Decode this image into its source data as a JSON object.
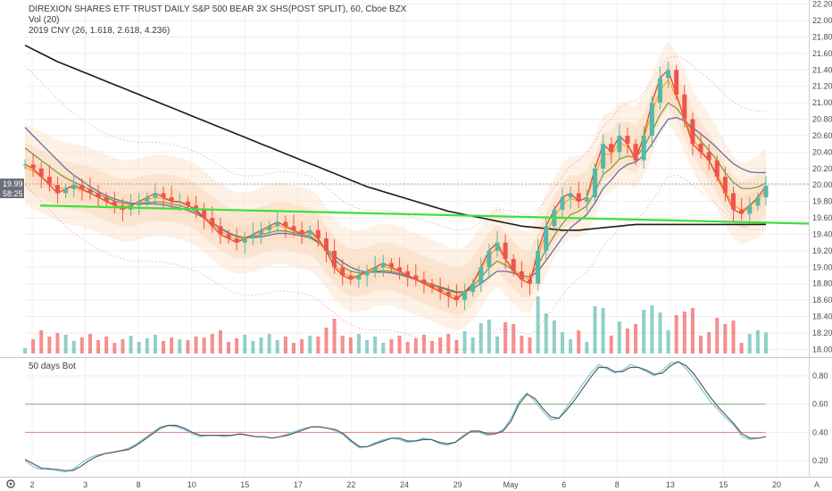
{
  "header": {
    "title": "DIREXION SHARES ETF TRUST DAILY S&P 500 BEAR 3X SHS(POST SPLIT), 60, Cboe BZX",
    "vol_label": "Vol (20)",
    "cny_label": "2019 CNY (26, 1.618, 2.618, 4.236)"
  },
  "oscillator": {
    "label": "50 days Bot"
  },
  "price_tags": {
    "last_price": "19.99",
    "countdown": "58:25"
  },
  "footer": {
    "settings_icon": "gear-icon",
    "auto_label": "A"
  },
  "colors": {
    "up": "#53b9a8",
    "down": "#ef5350",
    "ma_red": "#e0402f",
    "ma_orange": "#f5a623",
    "ma_green": "#7a9a4a",
    "ma_purple": "#6b6aa5",
    "ma_black": "#1a1a1a",
    "trendline": "#3fe03a",
    "band_fill": "#fbd8b6",
    "osc_line": "#5a5a5a",
    "osc_signal": "#7ec8e3"
  },
  "chart_data": [
    {
      "type": "candlestick",
      "panel": "price",
      "y_ticks": [
        "22.20",
        "22.00",
        "21.80",
        "21.60",
        "21.40",
        "21.20",
        "21.00",
        "20.80",
        "20.60",
        "20.40",
        "20.20",
        "20.00",
        "19.80",
        "19.60",
        "19.40",
        "19.20",
        "19.00",
        "18.80",
        "18.60",
        "18.40",
        "18.20",
        "18.00"
      ],
      "ylim": [
        17.95,
        22.25
      ],
      "x_ticks": [
        "2",
        "3",
        "8",
        "10",
        "15",
        "17",
        "22",
        "24",
        "29",
        "May",
        "6",
        "8",
        "13",
        "15",
        "20"
      ],
      "last_value": 19.99,
      "trendline": {
        "from": 19.75,
        "to": 19.53
      },
      "close_path": [
        20.25,
        20.2,
        20.1,
        20.0,
        19.9,
        19.95,
        20.0,
        19.95,
        19.9,
        19.85,
        19.8,
        19.75,
        19.7,
        19.75,
        19.8,
        19.85,
        19.9,
        19.85,
        19.8,
        19.8,
        19.75,
        19.7,
        19.6,
        19.5,
        19.4,
        19.35,
        19.3,
        19.35,
        19.4,
        19.45,
        19.5,
        19.55,
        19.5,
        19.45,
        19.4,
        19.45,
        19.35,
        19.2,
        19.0,
        18.9,
        18.85,
        18.9,
        18.95,
        19.0,
        19.05,
        19.0,
        18.95,
        18.9,
        18.85,
        18.8,
        18.75,
        18.7,
        18.65,
        18.6,
        18.7,
        18.8,
        19.0,
        19.2,
        19.3,
        19.1,
        18.95,
        18.85,
        18.8,
        19.2,
        19.5,
        19.7,
        19.85,
        19.9,
        19.8,
        19.85,
        20.2,
        20.5,
        20.4,
        20.6,
        20.5,
        20.3,
        20.6,
        21.0,
        21.3,
        21.4,
        21.1,
        20.8,
        20.5,
        20.4,
        20.3,
        20.1,
        19.9,
        19.7,
        19.65,
        19.75,
        19.85,
        19.99
      ],
      "ma_fast": [
        20.2,
        20.15,
        20.1,
        20.05,
        20.0,
        19.97,
        19.95,
        19.93,
        19.9,
        19.86,
        19.82,
        19.78,
        19.75,
        19.75,
        19.78,
        19.8,
        19.82,
        19.82,
        19.8,
        19.78,
        19.75,
        19.7,
        19.62,
        19.54,
        19.46,
        19.4,
        19.36,
        19.36,
        19.38,
        19.42,
        19.45,
        19.48,
        19.47,
        19.44,
        19.42,
        19.4,
        19.32,
        19.18,
        19.05,
        18.95,
        18.9,
        18.9,
        18.92,
        18.96,
        18.98,
        18.97,
        18.94,
        18.9,
        18.86,
        18.82,
        18.78,
        18.74,
        18.7,
        18.67,
        18.7,
        18.8,
        18.95,
        19.1,
        19.2,
        19.1,
        19.0,
        18.9,
        18.88,
        19.1,
        19.35,
        19.55,
        19.7,
        19.8,
        19.8,
        19.85,
        20.05,
        20.3,
        20.35,
        20.45,
        20.45,
        20.4,
        20.55,
        20.8,
        21.05,
        21.2,
        21.05,
        20.85,
        20.6,
        20.45,
        20.3,
        20.15,
        19.95,
        19.8,
        19.72,
        19.75,
        19.8,
        19.9
      ],
      "ma_slow": [
        20.7,
        20.6,
        20.5,
        20.4,
        20.3,
        20.2,
        20.12,
        20.05,
        19.98,
        19.92,
        19.87,
        19.83,
        19.8,
        19.78,
        19.77,
        19.77,
        19.77,
        19.76,
        19.74,
        19.72,
        19.69,
        19.65,
        19.6,
        19.54,
        19.48,
        19.42,
        19.38,
        19.36,
        19.36,
        19.37,
        19.39,
        19.41,
        19.41,
        19.4,
        19.38,
        19.36,
        19.3,
        19.22,
        19.14,
        19.06,
        19.0,
        18.96,
        18.94,
        18.94,
        18.94,
        18.93,
        18.91,
        18.88,
        18.85,
        18.82,
        18.79,
        18.76,
        18.73,
        18.7,
        18.7,
        18.74,
        18.8,
        18.88,
        18.95,
        18.95,
        18.93,
        18.9,
        18.88,
        18.95,
        19.08,
        19.22,
        19.36,
        19.48,
        19.56,
        19.64,
        19.78,
        19.96,
        20.06,
        20.18,
        20.25,
        20.28,
        20.36,
        20.5,
        20.66,
        20.8,
        20.82,
        20.78,
        20.7,
        20.62,
        20.54,
        20.45,
        20.35,
        20.26,
        20.2,
        20.16,
        20.15,
        20.15
      ],
      "ma_long": [
        21.7,
        21.65,
        21.6,
        21.55,
        21.5,
        21.46,
        21.42,
        21.38,
        21.34,
        21.3,
        21.26,
        21.22,
        21.18,
        21.14,
        21.1,
        21.06,
        21.02,
        20.98,
        20.94,
        20.9,
        20.86,
        20.82,
        20.78,
        20.74,
        20.7,
        20.66,
        20.62,
        20.58,
        20.54,
        20.5,
        20.46,
        20.42,
        20.38,
        20.34,
        20.3,
        20.26,
        20.22,
        20.18,
        20.14,
        20.1,
        20.06,
        20.02,
        19.98,
        19.95,
        19.92,
        19.89,
        19.86,
        19.83,
        19.8,
        19.77,
        19.74,
        19.71,
        19.68,
        19.66,
        19.64,
        19.62,
        19.6,
        19.58,
        19.56,
        19.54,
        19.52,
        19.5,
        19.49,
        19.48,
        19.47,
        19.46,
        19.45,
        19.45,
        19.45,
        19.46,
        19.47,
        19.48,
        19.49,
        19.5,
        19.51,
        19.52,
        19.52,
        19.52,
        19.52,
        19.52,
        19.52,
        19.52,
        19.52,
        19.52,
        19.52,
        19.52,
        19.52,
        19.52,
        19.52,
        19.52,
        19.52,
        19.52
      ]
    },
    {
      "type": "line",
      "panel": "oscillator",
      "y_ticks": [
        "0.80",
        "0.60",
        "0.40",
        "0.20"
      ],
      "ylim": [
        0.1,
        0.92
      ],
      "levels": [
        0.6,
        0.4
      ],
      "series": [
        {
          "values": [
            0.2,
            0.16,
            0.14,
            0.15,
            0.13,
            0.12,
            0.14,
            0.18,
            0.22,
            0.24,
            0.25,
            0.26,
            0.27,
            0.29,
            0.32,
            0.36,
            0.4,
            0.44,
            0.45,
            0.44,
            0.42,
            0.39,
            0.37,
            0.38,
            0.38,
            0.37,
            0.38,
            0.39,
            0.38,
            0.37,
            0.37,
            0.36,
            0.37,
            0.39,
            0.41,
            0.43,
            0.44,
            0.44,
            0.43,
            0.41,
            0.38,
            0.33,
            0.29,
            0.3,
            0.33,
            0.35,
            0.36,
            0.35,
            0.33,
            0.34,
            0.36,
            0.35,
            0.32,
            0.31,
            0.33,
            0.38,
            0.41,
            0.4,
            0.38,
            0.39,
            0.42,
            0.5,
            0.62,
            0.68,
            0.62,
            0.55,
            0.49,
            0.5,
            0.58,
            0.66,
            0.74,
            0.82,
            0.88,
            0.85,
            0.82,
            0.84,
            0.88,
            0.86,
            0.83,
            0.8,
            0.84,
            0.89,
            0.9,
            0.85,
            0.78,
            0.7,
            0.62,
            0.56,
            0.5,
            0.45,
            0.37,
            0.35,
            0.36,
            0.37
          ]
        },
        {
          "values": [
            0.21,
            0.18,
            0.15,
            0.14,
            0.14,
            0.13,
            0.13,
            0.16,
            0.2,
            0.23,
            0.25,
            0.26,
            0.27,
            0.28,
            0.31,
            0.35,
            0.39,
            0.43,
            0.45,
            0.45,
            0.43,
            0.4,
            0.38,
            0.38,
            0.38,
            0.38,
            0.38,
            0.39,
            0.38,
            0.37,
            0.37,
            0.36,
            0.37,
            0.38,
            0.4,
            0.42,
            0.44,
            0.44,
            0.43,
            0.42,
            0.39,
            0.34,
            0.3,
            0.3,
            0.32,
            0.34,
            0.36,
            0.36,
            0.34,
            0.34,
            0.35,
            0.35,
            0.33,
            0.32,
            0.33,
            0.37,
            0.41,
            0.41,
            0.39,
            0.39,
            0.41,
            0.48,
            0.6,
            0.67,
            0.64,
            0.57,
            0.51,
            0.5,
            0.56,
            0.63,
            0.71,
            0.79,
            0.86,
            0.86,
            0.83,
            0.83,
            0.86,
            0.86,
            0.84,
            0.81,
            0.82,
            0.87,
            0.9,
            0.87,
            0.81,
            0.73,
            0.65,
            0.58,
            0.52,
            0.46,
            0.39,
            0.36,
            0.36,
            0.37
          ]
        }
      ]
    }
  ]
}
